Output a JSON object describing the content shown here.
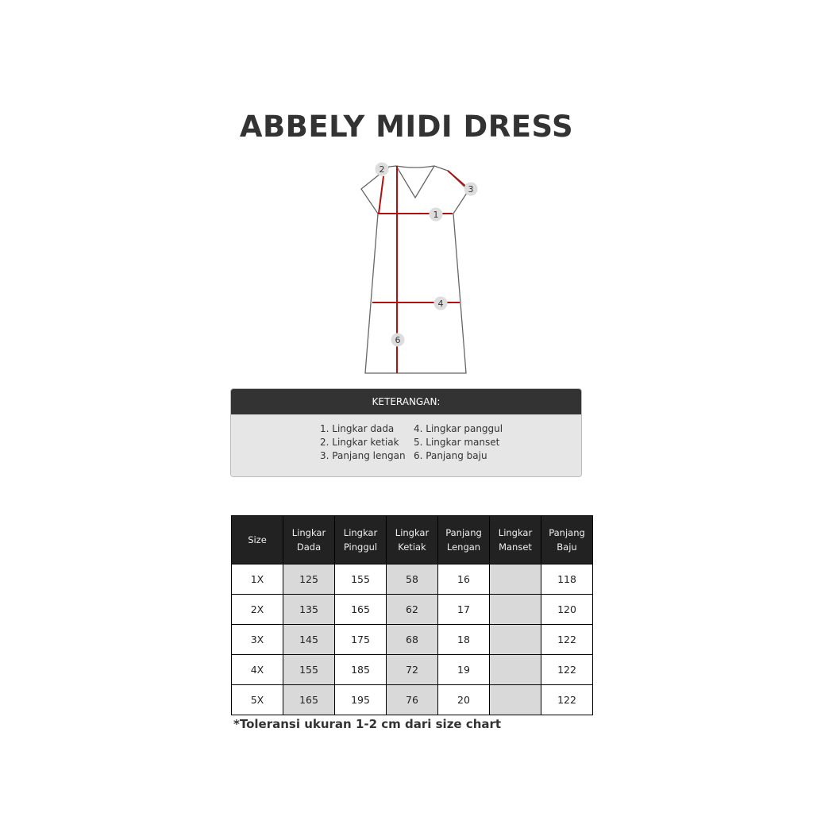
{
  "title": "ABBELY MIDI DRESS",
  "diagram": {
    "markers": [
      "1",
      "2",
      "3",
      "4",
      "6"
    ],
    "line_color": "#b01010",
    "outline_color": "#666666"
  },
  "legend": {
    "heading": "KETERANGAN:",
    "left": [
      "1. Lingkar dada",
      "2. Lingkar ketiak",
      "3. Panjang lengan"
    ],
    "right": [
      "4. Lingkar panggul",
      "5. Lingkar manset",
      "6. Panjang baju"
    ]
  },
  "table": {
    "headers": [
      [
        "Size",
        ""
      ],
      [
        "Lingkar",
        "Dada"
      ],
      [
        "Lingkar",
        "Pinggul"
      ],
      [
        "Lingkar",
        "Ketiak"
      ],
      [
        "Panjang",
        "Lengan"
      ],
      [
        "Lingkar",
        "Manset"
      ],
      [
        "Panjang",
        "Baju"
      ]
    ],
    "rows": [
      [
        "1X",
        "125",
        "155",
        "58",
        "16",
        "",
        "118"
      ],
      [
        "2X",
        "135",
        "165",
        "62",
        "17",
        "",
        "120"
      ],
      [
        "3X",
        "145",
        "175",
        "68",
        "18",
        "",
        "122"
      ],
      [
        "4X",
        "155",
        "185",
        "72",
        "19",
        "",
        "122"
      ],
      [
        "5X",
        "165",
        "195",
        "76",
        "20",
        "",
        "122"
      ]
    ]
  },
  "note": "*Toleransi ukuran 1-2 cm dari size chart"
}
